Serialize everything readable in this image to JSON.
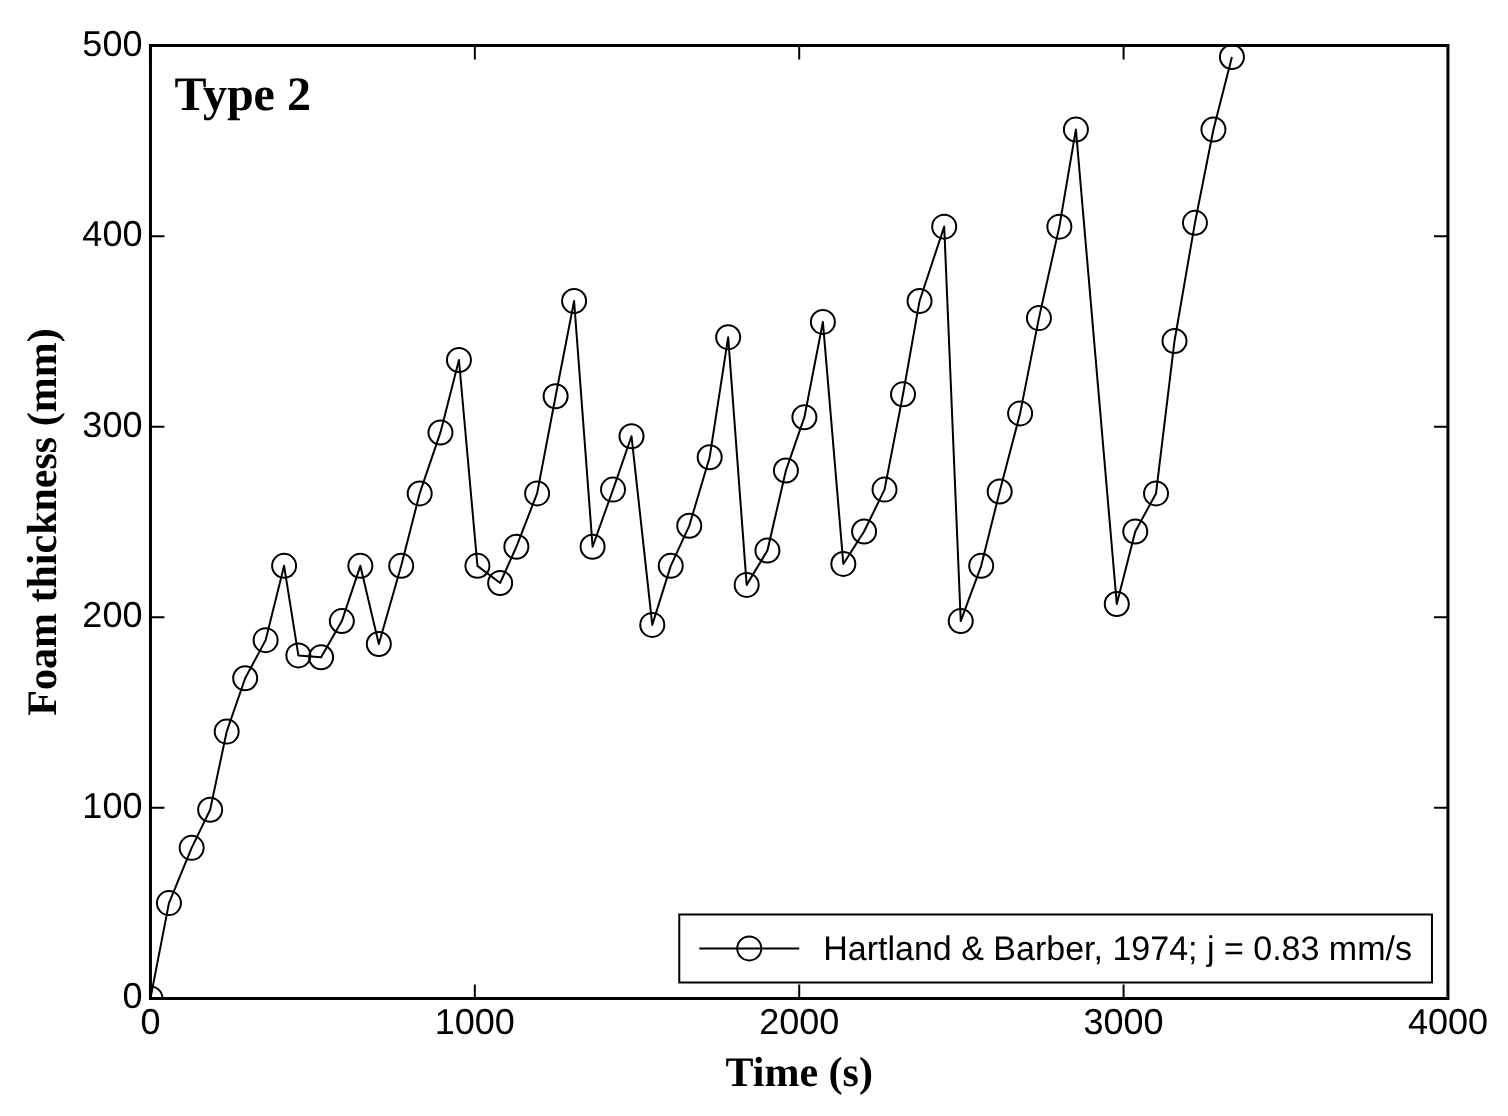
{
  "chart_data": {
    "type": "line",
    "title": "Type 2",
    "xlabel": "Time (s)",
    "ylabel": "Foam thickness (mm)",
    "xlim": [
      0,
      4000
    ],
    "xticks": [
      0,
      1000,
      2000,
      3000,
      4000
    ],
    "ylim": [
      0,
      500
    ],
    "yticks": [
      0,
      100,
      200,
      300,
      400,
      500
    ],
    "grid": false,
    "legend": "bottom right",
    "marker": "circle",
    "line_style": "solid",
    "series": [
      {
        "name": "Hartland & Barber, 1974; j = 0.83 mm/s",
        "color": "#000000",
        "x": [
          0,
          57,
          127,
          184,
          235,
          292,
          355,
          412,
          456,
          526,
          590,
          647,
          704,
          773,
          830,
          894,
          951,
          1008,
          1078,
          1128,
          1192,
          1249,
          1306,
          1363,
          1426,
          1483,
          1547,
          1604,
          1661,
          1724,
          1781,
          1838,
          1902,
          1959,
          2016,
          2073,
          2136,
          2200,
          2263,
          2320,
          2371,
          2447,
          2498,
          2561,
          2618,
          2681,
          2739,
          2802,
          2853,
          2979,
          3036,
          3100,
          3157,
          3220,
          3277,
          3334
        ],
        "values": [
          0,
          50,
          79,
          99,
          140,
          168,
          188,
          227,
          180,
          179,
          198,
          227,
          186,
          227,
          265,
          297,
          335,
          227,
          218,
          237,
          265,
          316,
          366,
          237,
          267,
          295,
          196,
          227,
          248,
          284,
          347,
          217,
          235,
          277,
          305,
          355,
          228,
          245,
          267,
          317,
          366,
          405,
          198,
          227,
          266,
          307,
          357,
          405,
          456,
          207,
          245,
          265,
          345,
          407,
          456,
          494
        ]
      }
    ]
  }
}
